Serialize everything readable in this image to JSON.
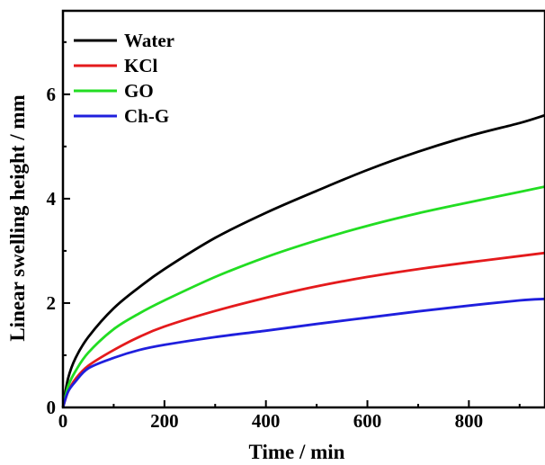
{
  "chart_data": {
    "type": "line",
    "title": "",
    "xlabel": "Time / min",
    "ylabel": "Linear swelling height / mm",
    "xlim": [
      0,
      950
    ],
    "ylim": [
      0,
      7.6
    ],
    "xticks": [
      0,
      200,
      400,
      600,
      800
    ],
    "yticks": [
      0,
      2,
      4,
      6
    ],
    "x_tick_labels": [
      "0",
      "200",
      "400",
      "600",
      "800"
    ],
    "y_tick_labels": [
      "0",
      "2",
      "4",
      "6"
    ],
    "grid": false,
    "legend_position": "top-left",
    "series": [
      {
        "name": "Water",
        "color": "#000000",
        "points": [
          [
            0,
            0
          ],
          [
            10,
            0.55
          ],
          [
            25,
            0.95
          ],
          [
            50,
            1.35
          ],
          [
            100,
            1.9
          ],
          [
            150,
            2.3
          ],
          [
            200,
            2.65
          ],
          [
            300,
            3.25
          ],
          [
            400,
            3.73
          ],
          [
            500,
            4.15
          ],
          [
            600,
            4.55
          ],
          [
            700,
            4.9
          ],
          [
            800,
            5.2
          ],
          [
            900,
            5.45
          ],
          [
            950,
            5.6
          ]
        ]
      },
      {
        "name": "KCl",
        "color": "#e41a1c",
        "points": [
          [
            0,
            0
          ],
          [
            10,
            0.3
          ],
          [
            25,
            0.55
          ],
          [
            50,
            0.8
          ],
          [
            100,
            1.1
          ],
          [
            150,
            1.35
          ],
          [
            200,
            1.55
          ],
          [
            300,
            1.85
          ],
          [
            400,
            2.1
          ],
          [
            500,
            2.32
          ],
          [
            600,
            2.5
          ],
          [
            700,
            2.65
          ],
          [
            800,
            2.78
          ],
          [
            900,
            2.9
          ],
          [
            950,
            2.96
          ]
        ]
      },
      {
        "name": "GO",
        "color": "#22dd22",
        "points": [
          [
            0,
            0
          ],
          [
            10,
            0.4
          ],
          [
            25,
            0.7
          ],
          [
            50,
            1.05
          ],
          [
            100,
            1.5
          ],
          [
            150,
            1.8
          ],
          [
            200,
            2.05
          ],
          [
            300,
            2.5
          ],
          [
            400,
            2.88
          ],
          [
            500,
            3.2
          ],
          [
            600,
            3.48
          ],
          [
            700,
            3.72
          ],
          [
            800,
            3.93
          ],
          [
            900,
            4.13
          ],
          [
            950,
            4.23
          ]
        ]
      },
      {
        "name": "Ch-G",
        "color": "#1f1fdd",
        "points": [
          [
            0,
            0
          ],
          [
            10,
            0.3
          ],
          [
            25,
            0.5
          ],
          [
            50,
            0.75
          ],
          [
            100,
            0.95
          ],
          [
            150,
            1.1
          ],
          [
            200,
            1.2
          ],
          [
            300,
            1.35
          ],
          [
            400,
            1.47
          ],
          [
            500,
            1.6
          ],
          [
            600,
            1.72
          ],
          [
            700,
            1.84
          ],
          [
            800,
            1.95
          ],
          [
            900,
            2.05
          ],
          [
            950,
            2.08
          ]
        ]
      }
    ]
  }
}
